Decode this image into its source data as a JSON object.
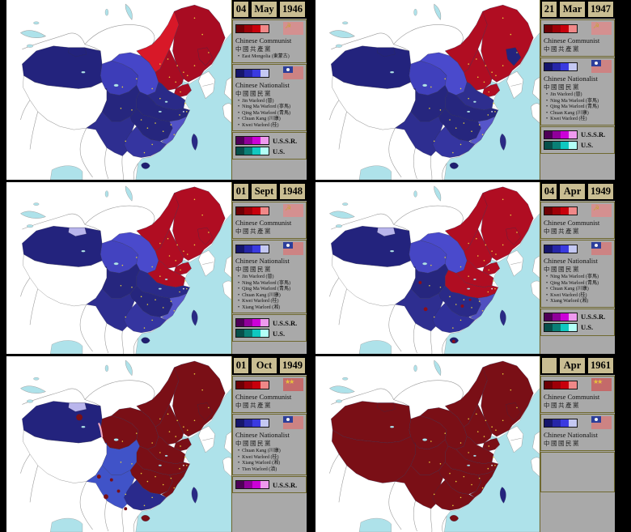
{
  "colors": {
    "sea": "#aee2ea",
    "outland": "#ffffff",
    "neighbor_border": "#9a9a9a",
    "region_border": "rgba(45,45,80,0.55)",
    "legend_bg": "#a9a9a9",
    "legend_frame": "#6f6930",
    "date_bg": "#c9bd92",
    "communist_scale": [
      "#6d0005",
      "#9e0008",
      "#c8000c",
      "#f08888"
    ],
    "nationalist_scale": [
      "#16166b",
      "#2626a8",
      "#3a3ae0",
      "#c4c8f2"
    ],
    "ussr_scale": [
      "#4e0057",
      "#90009a",
      "#cc00d8",
      "#ee9aee"
    ],
    "us_scale": [
      "#084f4a",
      "#0a8076",
      "#10c8c0",
      "#b2fff6"
    ]
  },
  "icons": {
    "ussr_flag_emblem": "☭",
    "prc_flag_stars": "★★",
    "bullet": "•"
  },
  "panels": [
    {
      "date": {
        "day": "04",
        "month": "May",
        "year": "1946"
      },
      "communist": {
        "title": "Chinese Communist",
        "title_zh": "中國共產黨",
        "flag": "ussr",
        "notes": [
          "East Mongolia (東蒙古)"
        ]
      },
      "nationalist": {
        "title": "Chinese Nationalist",
        "title_zh": "中國國民黨",
        "flag": "roc",
        "warlords": [
          "Jin Warlord (晉)",
          "Ning Ma Warlord (寧馬)",
          "Qing Ma Warlord (青馬)",
          "Chuan Kang (川康)",
          "Kwei Warlord (桂)"
        ]
      },
      "powers": {
        "ussr": "U.S.S.R.",
        "us": "U.S."
      },
      "map": {
        "regions": {
          "xinjiang": "#23237d",
          "nw_patch": "#23237d",
          "tibet": "#ffffff",
          "qinghai": "#3d3db8",
          "shaanxi_gansu": "#4646c8",
          "inner_mongolia": "#d81828",
          "manchuria": "#a80c22",
          "manchuria_patch": "#a80c22",
          "north_china": "#a80c22",
          "shandong": "#a80c22",
          "huaibei": "#2a2a88",
          "yangtze": "#26267e",
          "sichuan": "#26267e",
          "yunnan": "#2e2e90",
          "hunan_jiangxi": "#26267e",
          "se_coast": "#5252c6",
          "guang": "#3535a0",
          "taiwan": "#2a2a85",
          "hainan": "#1f1f70"
        },
        "overlays": {
          "xj_pocket": null,
          "highlight": null,
          "pockets": null
        }
      }
    },
    {
      "date": {
        "day": "21",
        "month": "Mar",
        "year": "1947"
      },
      "communist": {
        "title": "Chinese Communist",
        "title_zh": "中國共產黨",
        "flag": "ussr",
        "notes": []
      },
      "nationalist": {
        "title": "Chinese Nationalist",
        "title_zh": "中國國民黨",
        "flag": "roc",
        "warlords": [
          "Jin Warlord (晉)",
          "Ning Ma Warlord (寧馬)",
          "Qing Ma Warlord (青馬)",
          "Chuan Kang (川康)",
          "Kwei Warlord (桂)"
        ]
      },
      "powers": {
        "ussr": "U.S.S.R.",
        "us": "U.S."
      },
      "map": {
        "regions": {
          "xinjiang": "#23237d",
          "nw_patch": "#23237d",
          "tibet": "#ffffff",
          "qinghai": "#4040bc",
          "shaanxi_gansu": "#4a4acc",
          "inner_mongolia": "#b00d22",
          "manchuria": "#b00d22",
          "manchuria_patch": "#23237d",
          "north_china": "#b00d22",
          "shandong": "#b00d22",
          "huaibei": "#2e2e8e",
          "yangtze": "#26267e",
          "sichuan": "#26267e",
          "yunnan": "#2e2e90",
          "hunan_jiangxi": "#26267e",
          "se_coast": "#5656ca",
          "guang": "#3535a0",
          "taiwan": "#2a2a85",
          "hainan": "#1f1f70"
        },
        "overlays": {
          "xj_pocket": null,
          "highlight": null,
          "pockets": null
        }
      }
    },
    {
      "date": {
        "day": "01",
        "month": "Sept",
        "year": "1948"
      },
      "communist": {
        "title": "Chinese Communist",
        "title_zh": "中國共產黨",
        "flag": "ussr",
        "notes": []
      },
      "nationalist": {
        "title": "Chinese Nationalist",
        "title_zh": "中國國民黨",
        "flag": "roc",
        "warlords": [
          "Jin Warlord (晉)",
          "Ning Ma Warlord (寧馬)",
          "Qing Ma Warlord (青馬)",
          "Chuan Kang (川康)",
          "Kwei Warlord (桂)",
          "Xiang Warlord (湘)"
        ]
      },
      "powers": {
        "ussr": "U.S.S.R.",
        "us": "U.S."
      },
      "map": {
        "regions": {
          "xinjiang": "#23237d",
          "nw_patch": "#b9b5ec",
          "tibet": "#ffffff",
          "qinghai": "#4343c0",
          "shaanxi_gansu": "#4a4acc",
          "inner_mongolia": "#b00d22",
          "manchuria": "#b00d22",
          "manchuria_patch": "#b00d22",
          "north_china": "#b00d22",
          "shandong": "#b00d22",
          "huaibei": "#b00d22",
          "yangtze": "#2a2a88",
          "sichuan": "#26267e",
          "yunnan": "#2e2e90",
          "hunan_jiangxi": "#26267e",
          "se_coast": "#5656ca",
          "guang": "#3535a0",
          "taiwan": "#2a2a85",
          "hainan": "#1f1f70"
        },
        "overlays": {
          "xj_pocket": null,
          "highlight": null,
          "pockets": null
        }
      }
    },
    {
      "date": {
        "day": "04",
        "month": "Apr",
        "year": "1949"
      },
      "communist": {
        "title": "Chinese Communist",
        "title_zh": "中國共產黨",
        "flag": "ussr",
        "notes": []
      },
      "nationalist": {
        "title": "Chinese Nationalist",
        "title_zh": "中國國民黨",
        "flag": "roc",
        "warlords": [
          "Ning Ma Warlord (寧馬)",
          "Qing Ma Warlord (青馬)",
          "Chuan Kang (川康)",
          "Kwei Warlord (桂)",
          "Xiang Warlord (湘)"
        ]
      },
      "powers": {
        "ussr": "U.S.S.R.",
        "us": "U.S."
      },
      "map": {
        "regions": {
          "xinjiang": "#23237d",
          "nw_patch": "#b9b5ec",
          "tibet": "#ffffff",
          "qinghai": "#4646c4",
          "shaanxi_gansu": "#4a4acc",
          "inner_mongolia": "#b00d22",
          "manchuria": "#b00d22",
          "manchuria_patch": "#b00d22",
          "north_china": "#b00d22",
          "shandong": "#b00d22",
          "huaibei": "#b00d22",
          "yangtze": "#b00d22",
          "sichuan": "#26267e",
          "yunnan": "#2e2e90",
          "hunan_jiangxi": "#2a2a88",
          "se_coast": "#5050c0",
          "guang": "#30309a",
          "taiwan": "#2a2a85",
          "hainan": "#1f1f70"
        },
        "overlays": {
          "xj_pocket": null,
          "highlight": null,
          "pockets": "apr1949",
          "pocket_color": "#8c0d18"
        }
      }
    },
    {
      "date": {
        "day": "01",
        "month": "Oct",
        "year": "1949"
      },
      "communist": {
        "title": "Chinese Communist",
        "title_zh": "中國共產黨",
        "flag": "prc",
        "notes": []
      },
      "nationalist": {
        "title": "Chinese Nationalist",
        "title_zh": "中國國民黨",
        "flag": "roc",
        "warlords": [
          "Chuan Kang (川康)",
          "Kwei Warlord (桂)",
          "Xiang Warlord (湘)",
          "Tien Warlord (滇)"
        ]
      },
      "powers": {
        "ussr": "U.S.S.R.",
        "us": null
      },
      "map": {
        "regions": {
          "xinjiang": "#23237d",
          "nw_patch": "#b9b5ec",
          "tibet": "#ffffff",
          "qinghai": "#7a0f16",
          "shaanxi_gansu": "#7a0f16",
          "inner_mongolia": "#7a0f16",
          "manchuria": "#7a0f16",
          "manchuria_patch": "#7a0f16",
          "north_china": "#7a0f16",
          "shandong": "#7a0f16",
          "huaibei": "#7a0f16",
          "yangtze": "#7a0f16",
          "sichuan": "#4053c8",
          "yunnan": "#4053c8",
          "hunan_jiangxi": "#7a0f16",
          "se_coast": "#7a0f16",
          "guang": "#2a2a8c",
          "taiwan": "#2a2a85",
          "hainan": "#7a0f16"
        },
        "overlays": {
          "xj_pocket": "#7a0f16",
          "highlight": "#f0a8c0",
          "pockets": "oct1949",
          "pocket_color": "#7a0f16"
        }
      }
    },
    {
      "date": {
        "day": "",
        "month": "Apr",
        "year": "1961"
      },
      "communist": {
        "title": "Chinese Communist",
        "title_zh": "中國共產黨",
        "flag": "prc",
        "notes": []
      },
      "nationalist": {
        "title": "Chinese Nationalist",
        "title_zh": "中國國民黨",
        "flag": "roc",
        "warlords": []
      },
      "powers": {
        "ussr": null,
        "us": null
      },
      "map": {
        "regions": {
          "xinjiang": "#7a0f16",
          "nw_patch": "#7a0f16",
          "tibet": "#7a0f16",
          "qinghai": "#7a0f16",
          "shaanxi_gansu": "#7a0f16",
          "inner_mongolia": "#7a0f16",
          "manchuria": "#7a0f16",
          "manchuria_patch": "#7a0f16",
          "north_china": "#7a0f16",
          "shandong": "#7a0f16",
          "huaibei": "#7a0f16",
          "yangtze": "#7a0f16",
          "sichuan": "#7a0f16",
          "yunnan": "#7a0f16",
          "hunan_jiangxi": "#7a0f16",
          "se_coast": "#7a0f16",
          "guang": "#7a0f16",
          "taiwan": "#23237d",
          "hainan": "#7a0f16"
        },
        "overlays": {
          "xj_pocket": null,
          "highlight": null,
          "pockets": null
        }
      }
    }
  ]
}
